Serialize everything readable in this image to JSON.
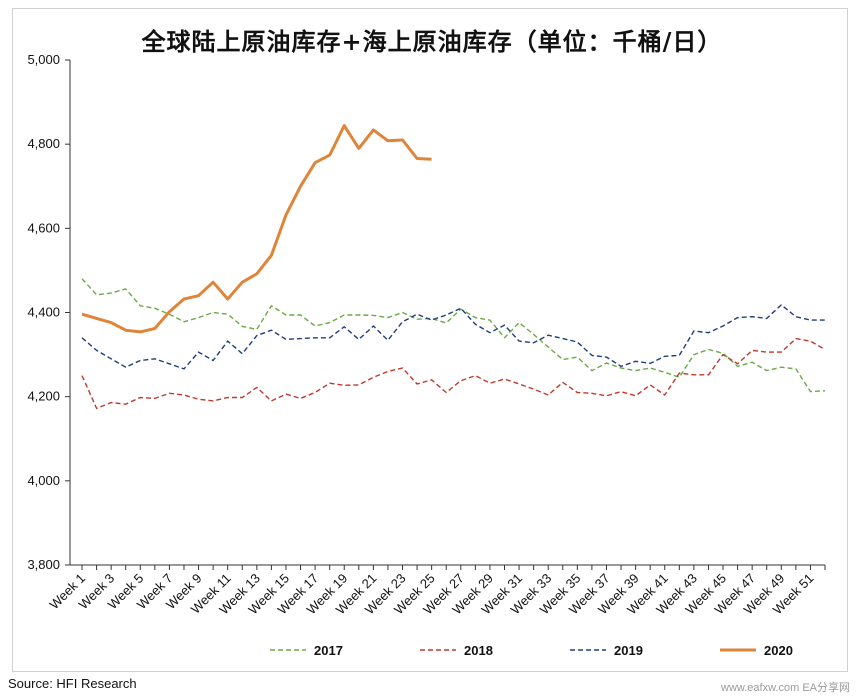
{
  "chart_data": {
    "type": "line",
    "title": "全球陆上原油库存+海上原油库存（单位：千桶/日）",
    "xlabel": "",
    "ylabel": "",
    "ylim": [
      3800,
      5000
    ],
    "yticks": [
      "5,000",
      "4,800",
      "4,600",
      "4,400",
      "4,200",
      "4,000",
      "3,800"
    ],
    "x_tick_labels": [
      "Week 1",
      "Week 3",
      "Week 5",
      "Week 7",
      "Week 9",
      "Week 11",
      "Week 13",
      "Week 15",
      "Week 17",
      "Week 19",
      "Week 21",
      "Week 23",
      "Week 25",
      "Week 27",
      "Week 29",
      "Week 31",
      "Week 33",
      "Week 35",
      "Week 37",
      "Week 39",
      "Week 41",
      "Week 43",
      "Week 45",
      "Week 47",
      "Week 49",
      "Week 51"
    ],
    "weeks": 52,
    "grid": false,
    "legend_position": "bottom",
    "series": [
      {
        "name": "2017",
        "color": "#6aaa45",
        "style": "dashed",
        "values": [
          4480,
          4442,
          4446,
          4456,
          4416,
          4410,
          4396,
          4378,
          4388,
          4400,
          4396,
          4367,
          4360,
          4416,
          4394,
          4394,
          4368,
          4376,
          4394,
          4394,
          4393,
          4388,
          4400,
          4384,
          4386,
          4375,
          4408,
          4388,
          4382,
          4340,
          4376,
          4348,
          4318,
          4288,
          4294,
          4262,
          4280,
          4268,
          4262,
          4268,
          4258,
          4246,
          4300,
          4312,
          4303,
          4272,
          4282,
          4262,
          4270,
          4266,
          4212,
          4214
        ]
      },
      {
        "name": "2018",
        "color": "#c0392b",
        "style": "dashed",
        "values": [
          4250,
          4172,
          4186,
          4182,
          4198,
          4196,
          4208,
          4204,
          4194,
          4190,
          4198,
          4198,
          4222,
          4190,
          4206,
          4196,
          4210,
          4232,
          4227,
          4228,
          4246,
          4260,
          4268,
          4230,
          4240,
          4210,
          4238,
          4250,
          4232,
          4242,
          4230,
          4218,
          4204,
          4234,
          4210,
          4208,
          4202,
          4212,
          4202,
          4228,
          4204,
          4256,
          4252,
          4252,
          4300,
          4278,
          4310,
          4306,
          4306,
          4338,
          4332,
          4312
        ]
      },
      {
        "name": "2019",
        "color": "#1f3f79",
        "style": "dashed",
        "values": [
          4340,
          4310,
          4290,
          4270,
          4286,
          4290,
          4278,
          4266,
          4306,
          4286,
          4332,
          4302,
          4345,
          4358,
          4336,
          4338,
          4340,
          4340,
          4366,
          4336,
          4368,
          4334,
          4378,
          4396,
          4382,
          4394,
          4410,
          4372,
          4352,
          4370,
          4332,
          4328,
          4346,
          4338,
          4330,
          4298,
          4294,
          4272,
          4284,
          4279,
          4296,
          4298,
          4356,
          4352,
          4368,
          4388,
          4390,
          4386,
          4418,
          4390,
          4382,
          4382
        ]
      },
      {
        "name": "2020",
        "color": "#e0843a",
        "style": "solid",
        "values": [
          4396,
          4386,
          4376,
          4358,
          4354,
          4362,
          4402,
          4432,
          4440,
          4472,
          4432,
          4472,
          4492,
          4536,
          4632,
          4700,
          4756,
          4774,
          4844,
          4790,
          4834,
          4808,
          4810,
          4766,
          4764
        ]
      }
    ]
  },
  "source": "Source: HFI Research",
  "watermark": "www.eafxw.com EA分享网"
}
